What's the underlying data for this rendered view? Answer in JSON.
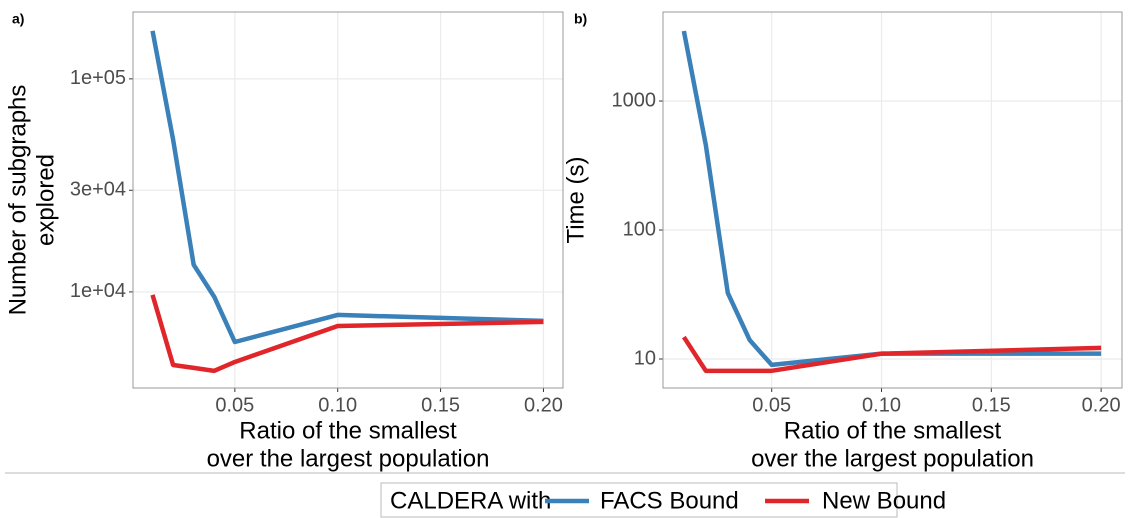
{
  "chart_data": [
    {
      "type": "line",
      "panel_label": "a)",
      "log_y": true,
      "grid": true,
      "xlabel": [
        "Ratio of the smallest",
        "over the largest population"
      ],
      "ylabel": [
        "Number of subgraphs",
        "explored"
      ],
      "xlim": [
        0.0005,
        0.2095
      ],
      "xticks": [
        0.05,
        {
          "value": 0.1,
          "label": "0.10"
        },
        0.15,
        {
          "value": 0.2,
          "label": "0.20"
        }
      ],
      "ylim": [
        3540,
        206000
      ],
      "yticks": [
        {
          "value": 10000,
          "label": "1e+04"
        },
        {
          "value": 30000,
          "label": "3e+04"
        },
        {
          "value": 100000,
          "label": "1e+05"
        }
      ],
      "x": [
        0.01,
        0.02,
        0.03,
        0.04,
        0.05,
        0.1,
        0.2
      ],
      "series": [
        {
          "name": "FACS Bound",
          "color": "#3a80b9",
          "values": [
            168000,
            51800,
            13400,
            9480,
            5820,
            7800,
            7310
          ]
        },
        {
          "name": "New Bound",
          "color": "#e0262a",
          "values": [
            9680,
            4540,
            4400,
            4260,
            4690,
            6920,
            7230
          ]
        }
      ]
    },
    {
      "type": "line",
      "panel_label": "b)",
      "log_y": true,
      "grid": true,
      "xlabel": [
        "Ratio of the smallest",
        "over the largest population"
      ],
      "ylabel": [
        "Time (s)"
      ],
      "xlim": [
        0.0005,
        0.2095
      ],
      "xticks": [
        0.05,
        {
          "value": 0.1,
          "label": "0.10"
        },
        0.15,
        {
          "value": 0.2,
          "label": "0.20"
        }
      ],
      "ylim": [
        5.96,
        4900
      ],
      "yticks": [
        10,
        100,
        1000
      ],
      "x": [
        0.01,
        0.02,
        0.03,
        0.04,
        0.05,
        0.1,
        0.2
      ],
      "series": [
        {
          "name": "FACS Bound",
          "color": "#3a80b9",
          "values": [
            3490,
            456,
            32.5,
            14,
            9,
            11,
            11
          ]
        },
        {
          "name": "New Bound",
          "color": "#e0262a",
          "values": [
            14.8,
            8.1,
            8.1,
            8.1,
            8.1,
            11,
            12.2
          ]
        }
      ]
    }
  ],
  "legend": {
    "title": "CALDERA with"
  }
}
